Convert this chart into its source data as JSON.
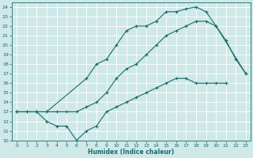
{
  "background_color": "#cfe8e8",
  "grid_color": "#b0d0d0",
  "line_color": "#1a6b6b",
  "xlim": [
    -0.5,
    23.5
  ],
  "ylim": [
    10,
    24.5
  ],
  "xlabel": "Humidex (Indice chaleur)",
  "xticks": [
    0,
    1,
    2,
    3,
    4,
    5,
    6,
    7,
    8,
    9,
    10,
    11,
    12,
    13,
    14,
    15,
    16,
    17,
    18,
    19,
    20,
    21,
    22,
    23
  ],
  "yticks": [
    10,
    11,
    12,
    13,
    14,
    15,
    16,
    17,
    18,
    19,
    20,
    21,
    22,
    23,
    24
  ],
  "line1_x": [
    0,
    2,
    3,
    7,
    8,
    9,
    10,
    11,
    12,
    13,
    14,
    15,
    16,
    17,
    18,
    19,
    20,
    23
  ],
  "line1_y": [
    13,
    13,
    13,
    16.5,
    18,
    18.5,
    20,
    21.5,
    22,
    22,
    22.5,
    23.5,
    23.5,
    23.8,
    24,
    23.5,
    22,
    17
  ],
  "line2_x": [
    0,
    1,
    2,
    3,
    4,
    5,
    6,
    7,
    8,
    9,
    10,
    11,
    12,
    13,
    14,
    15,
    16,
    17,
    18,
    19,
    20,
    21,
    22,
    23
  ],
  "line2_y": [
    13,
    13,
    13,
    13,
    13,
    13,
    13,
    13.5,
    14.0,
    15.0,
    16.5,
    17.5,
    18.0,
    19.0,
    20.0,
    21.0,
    21.5,
    22.0,
    22.5,
    22.5,
    22.0,
    20.5,
    18.5,
    17.0
  ],
  "line3_x": [
    0,
    1,
    2,
    3,
    4,
    5,
    6,
    7,
    8,
    9,
    10,
    11,
    12,
    13,
    14,
    15,
    16,
    17,
    18,
    19,
    20,
    21
  ],
  "line3_y": [
    13,
    13,
    13,
    12,
    11.5,
    11.5,
    10,
    11,
    11.5,
    13,
    13.5,
    14,
    14.5,
    15,
    15.5,
    16,
    16.5,
    16.5,
    16,
    16,
    16,
    16
  ]
}
